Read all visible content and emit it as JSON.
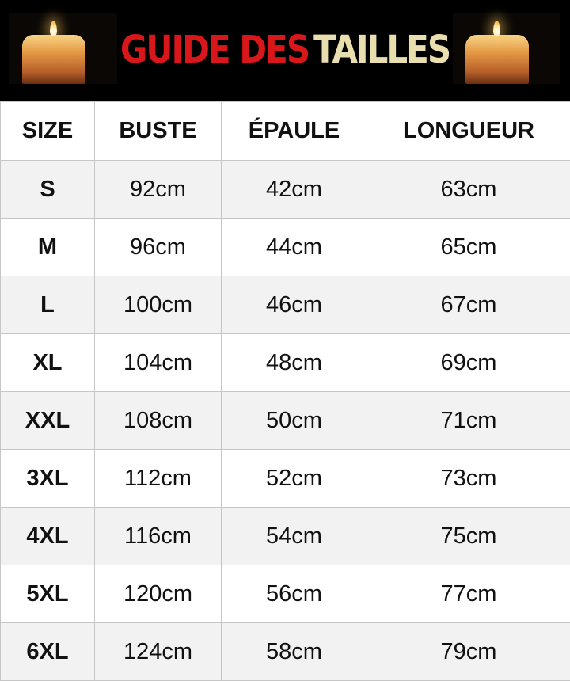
{
  "banner": {
    "title_part1": "GUIDE DES",
    "title_part2": "TAILLES",
    "colors": {
      "part1": "#d8171a",
      "part2": "#e9dfae",
      "background": "#000000"
    }
  },
  "table": {
    "headers": [
      "SIZE",
      "BUSTE",
      "ÉPAULE",
      "LONGUEUR"
    ],
    "rows": [
      [
        "S",
        "92cm",
        "42cm",
        "63cm"
      ],
      [
        "M",
        "96cm",
        "44cm",
        "65cm"
      ],
      [
        "L",
        "100cm",
        "46cm",
        "67cm"
      ],
      [
        "XL",
        "104cm",
        "48cm",
        "69cm"
      ],
      [
        "XXL",
        "108cm",
        "50cm",
        "71cm"
      ],
      [
        "3XL",
        "112cm",
        "52cm",
        "73cm"
      ],
      [
        "4XL",
        "116cm",
        "54cm",
        "75cm"
      ],
      [
        "5XL",
        "120cm",
        "56cm",
        "77cm"
      ],
      [
        "6XL",
        "124cm",
        "58cm",
        "79cm"
      ]
    ]
  }
}
